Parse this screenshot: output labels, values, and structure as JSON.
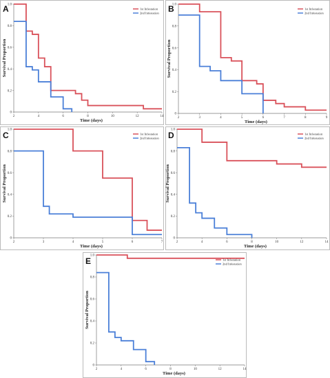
{
  "colors": {
    "first": "#d9515a",
    "second": "#4a7fd8",
    "axis": "#777777",
    "border": "#aaaaaa"
  },
  "chart_data": [
    {
      "type": "line",
      "step": true,
      "panel": "A",
      "xlabel": "Time (days)",
      "ylabel": "Survival Proportion",
      "xlim": [
        2,
        14
      ],
      "ylim": [
        0,
        1
      ],
      "xticks": [
        "2",
        "4",
        "6",
        "8",
        "10",
        "12",
        "14"
      ],
      "yticks": [
        "0",
        "0.2",
        "0.4",
        "0.6",
        "0.8",
        "1.0"
      ],
      "legend": "top-right",
      "series": [
        {
          "name": "1st Infestation",
          "color": "first",
          "x": [
            2,
            3,
            3.5,
            4,
            4.5,
            5,
            6,
            7,
            7.5,
            8,
            12.5,
            14
          ],
          "y": [
            1.0,
            0.75,
            0.72,
            0.5,
            0.42,
            0.2,
            0.2,
            0.17,
            0.11,
            0.06,
            0.03,
            0.03
          ]
        },
        {
          "name": "2nd Infestation",
          "color": "second",
          "x": [
            2,
            3,
            3.5,
            4,
            5,
            6,
            6.7
          ],
          "y": [
            0.84,
            0.42,
            0.39,
            0.28,
            0.14,
            0.03,
            0.0
          ]
        }
      ]
    },
    {
      "type": "line",
      "step": true,
      "panel": "B",
      "xlabel": "Time (days)",
      "ylabel": "Survival Proportion",
      "xlim": [
        2,
        9
      ],
      "ylim": [
        0,
        1
      ],
      "xticks": [
        "2",
        "3",
        "4",
        "5",
        "6",
        "7",
        "8",
        "9"
      ],
      "yticks": [
        "0",
        "0.2",
        "0.4",
        "0.6",
        "0.8",
        "1.0"
      ],
      "legend": "top-right",
      "series": [
        {
          "name": "1st Infestation",
          "color": "first",
          "x": [
            2,
            2.5,
            3,
            4,
            4.5,
            5,
            5.7,
            6,
            6.6,
            7,
            8,
            9
          ],
          "y": [
            1.0,
            1.0,
            0.93,
            0.51,
            0.48,
            0.3,
            0.27,
            0.12,
            0.09,
            0.06,
            0.03,
            0.03
          ]
        },
        {
          "name": "2nd Infestation",
          "color": "second",
          "x": [
            2,
            3,
            3.5,
            4,
            5,
            6
          ],
          "y": [
            0.9,
            0.43,
            0.39,
            0.3,
            0.18,
            0.0
          ]
        }
      ]
    },
    {
      "type": "line",
      "step": true,
      "panel": "C",
      "xlabel": "Time (days)",
      "ylabel": "Survival Proportion",
      "xlim": [
        2,
        7
      ],
      "ylim": [
        0,
        1
      ],
      "xticks": [
        "2",
        "3",
        "4",
        "5",
        "6",
        "7"
      ],
      "yticks": [
        "0",
        "0.2",
        "0.4",
        "0.6",
        "0.8",
        "1.0"
      ],
      "legend": "top-right",
      "series": [
        {
          "name": "1st Infestation",
          "color": "first",
          "x": [
            2,
            4,
            5,
            6,
            6.5,
            7
          ],
          "y": [
            1.0,
            0.8,
            0.55,
            0.16,
            0.07,
            0.07
          ]
        },
        {
          "name": "2nd Infestation",
          "color": "second",
          "x": [
            2,
            3,
            3.2,
            4,
            6,
            7
          ],
          "y": [
            0.8,
            0.29,
            0.22,
            0.19,
            0.03,
            0.03
          ]
        }
      ]
    },
    {
      "type": "line",
      "step": true,
      "panel": "D",
      "xlabel": "Time (days)",
      "ylabel": "Survival Proportion",
      "xlim": [
        2,
        14
      ],
      "ylim": [
        0,
        1
      ],
      "xticks": [
        "2",
        "4",
        "6",
        "8",
        "10",
        "12",
        "14"
      ],
      "yticks": [
        "0",
        "0.2",
        "0.4",
        "0.6",
        "0.8",
        "1.0"
      ],
      "legend": "top-right",
      "series": [
        {
          "name": "1st Infestation",
          "color": "first",
          "x": [
            2,
            4,
            6,
            10,
            12,
            14
          ],
          "y": [
            1.0,
            0.88,
            0.71,
            0.68,
            0.65,
            0.65
          ]
        },
        {
          "name": "2nd Infestation",
          "color": "second",
          "x": [
            2,
            3,
            3.5,
            4,
            5,
            6,
            8
          ],
          "y": [
            0.83,
            0.32,
            0.23,
            0.18,
            0.09,
            0.03,
            0.0
          ]
        }
      ]
    },
    {
      "type": "line",
      "step": true,
      "panel": "E",
      "xlabel": "Time (days)",
      "ylabel": "Survival Proportion",
      "xlim": [
        2,
        14
      ],
      "ylim": [
        0,
        1
      ],
      "xticks": [
        "2",
        "4",
        "6",
        "8",
        "10",
        "12",
        "14"
      ],
      "yticks": [
        "0",
        "0.2",
        "0.4",
        "0.6",
        "0.8",
        "1.0"
      ],
      "legend": "top-right",
      "series": [
        {
          "name": "1st Infestation",
          "color": "first",
          "x": [
            2,
            4.5,
            14
          ],
          "y": [
            1.0,
            0.97,
            0.97
          ]
        },
        {
          "name": "2nd Infestation",
          "color": "second",
          "x": [
            2,
            3,
            3.5,
            4,
            5,
            6,
            6.7
          ],
          "y": [
            0.84,
            0.3,
            0.25,
            0.22,
            0.14,
            0.03,
            0.0
          ]
        }
      ]
    }
  ]
}
